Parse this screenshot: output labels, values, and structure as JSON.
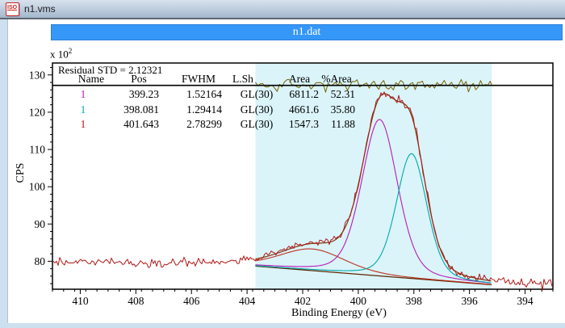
{
  "window": {
    "title": "n1.vms",
    "icon": "iso-file-icon",
    "icon_text": "ISO"
  },
  "document": {
    "header": "n1.dat"
  },
  "plot": {
    "y_multiplier": "x 10",
    "y_multiplier_exp": "2",
    "y_label": "CPS",
    "x_label": "Binding Energy (eV)",
    "residual_label": "Residual STD = 2.12321",
    "table": {
      "columns": [
        "Name",
        "Pos",
        "FWHM",
        "L.Sh",
        "Area",
        "%Area"
      ],
      "rows": [
        {
          "name": "1",
          "color": "#c717c7",
          "pos": "399.23",
          "fwhm": "1.52164",
          "lsh": "GL(30)",
          "area": "6811.2",
          "pct": "52.31"
        },
        {
          "name": "1",
          "color": "#00b4b4",
          "pos": "398.081",
          "fwhm": "1.29414",
          "lsh": "GL(30)",
          "area": "4661.6",
          "pct": "35.80"
        },
        {
          "name": "1",
          "color": "#b22020",
          "pos": "401.643",
          "fwhm": "2.78299",
          "lsh": "GL(30)",
          "area": "1547.3",
          "pct": "11.88"
        }
      ]
    }
  },
  "chart_data": {
    "type": "line",
    "title": "n1.dat",
    "xlabel": "Binding Energy (eV)",
    "ylabel": "CPS",
    "y_scale": "x 10^2",
    "x_ticks": [
      410,
      408,
      406,
      404,
      402,
      400,
      398,
      396,
      394
    ],
    "y_ticks": [
      80,
      90,
      100,
      110,
      120,
      130
    ],
    "xlim": [
      411.0,
      393.0
    ],
    "ylim": [
      72.5,
      133.2
    ],
    "x_axis_reversed": true,
    "x_minor_step": 0.4,
    "y_minor_step": 2,
    "grid": false,
    "fit_region_ev": [
      403.7,
      395.2
    ],
    "residual_std": 2.12321,
    "residual_zero_line_cps": 127.2,
    "residual_noise_cps": 1.25,
    "data_noise_cps": 0.75,
    "background_line": {
      "x": [
        403.7,
        395.2
      ],
      "y": [
        78.7,
        73.7
      ]
    },
    "data_baseline": {
      "x": [
        411.0,
        403.7,
        395.2,
        393.0
      ],
      "y": [
        80.0,
        78.9,
        73.9,
        73.6
      ]
    },
    "peaks": [
      {
        "name": "1",
        "pos": 399.23,
        "fwhm": 1.52164,
        "lineshape": "GL(30)",
        "area": 6811.2,
        "pct_area": 52.31,
        "height": 42.0,
        "color": "#b81cb8"
      },
      {
        "name": "1",
        "pos": 398.081,
        "fwhm": 1.29414,
        "lineshape": "GL(30)",
        "area": 4661.6,
        "pct_area": 35.8,
        "height": 33.5,
        "color": "#00a8a8"
      },
      {
        "name": "1",
        "pos": 401.643,
        "fwhm": 2.78299,
        "lineshape": "GL(30)",
        "area": 1547.3,
        "pct_area": 11.88,
        "height": 5.8,
        "color": "#c03020"
      }
    ],
    "colors": {
      "data": "#b01818",
      "envelope": "#7d3914",
      "background": "#5c2600",
      "residual": "#786400",
      "region_fill": "#daf4f9",
      "zero_line": "#000000",
      "axis": "#000000"
    }
  }
}
